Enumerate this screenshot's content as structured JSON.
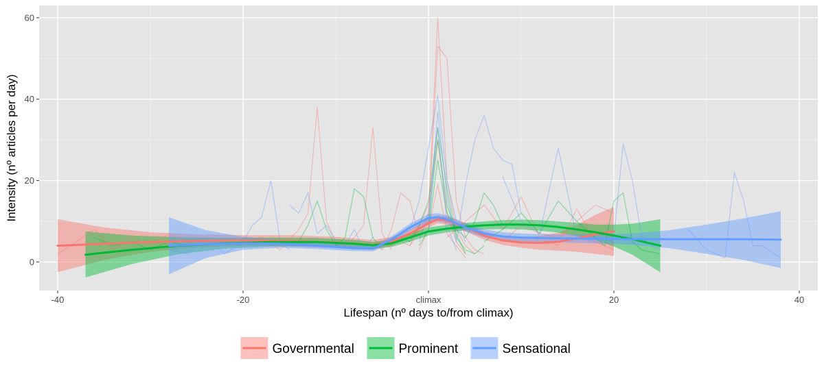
{
  "chart_data": {
    "type": "line",
    "xlabel": "Lifespan (nº days to/from climax)",
    "ylabel": "Intensity (nº articles per day)",
    "xlim": [
      -42,
      42
    ],
    "ylim": [
      -7,
      63
    ],
    "x_ticks": [
      {
        "value": -40,
        "label": "-40"
      },
      {
        "value": -20,
        "label": "-20"
      },
      {
        "value": 0,
        "label": "climax"
      },
      {
        "value": 20,
        "label": "20"
      },
      {
        "value": 40,
        "label": "40"
      }
    ],
    "y_ticks": [
      {
        "value": 0,
        "label": "0"
      },
      {
        "value": 20,
        "label": "20"
      },
      {
        "value": 40,
        "label": "40"
      },
      {
        "value": 60,
        "label": "60"
      }
    ],
    "grid": true,
    "legend_position": "bottom",
    "series": [
      {
        "name": "Governmental",
        "color": "#F8766D",
        "trend": {
          "x": [
            -40,
            -35,
            -30,
            -25,
            -20,
            -15,
            -10,
            -6,
            -4,
            -2,
            0,
            1,
            2,
            4,
            6,
            8,
            10,
            12,
            14,
            16,
            18,
            20
          ],
          "y": [
            4.0,
            4.5,
            4.9,
            5.2,
            5.3,
            5.2,
            4.8,
            4.2,
            5.0,
            7.0,
            9.5,
            10.5,
            10.2,
            8.5,
            6.5,
            5.3,
            4.8,
            4.7,
            5.0,
            5.8,
            6.8,
            7.5
          ],
          "lower": [
            -2.5,
            0.5,
            2.5,
            3.6,
            4.0,
            3.8,
            3.4,
            3.0,
            3.9,
            6.0,
            8.5,
            9.5,
            9.2,
            7.5,
            5.5,
            4.2,
            3.5,
            3.0,
            2.8,
            2.5,
            2.0,
            1.5
          ],
          "upper": [
            10.5,
            8.5,
            7.3,
            6.8,
            6.6,
            6.6,
            6.2,
            5.4,
            6.1,
            8.0,
            10.5,
            11.5,
            11.2,
            9.5,
            7.5,
            6.4,
            6.1,
            6.4,
            7.2,
            9.1,
            11.6,
            13.5
          ]
        },
        "raw": [
          {
            "x": [
              -40,
              -38,
              -36,
              -34,
              -32,
              -30,
              -28,
              -26
            ],
            "y": [
              2,
              5,
              8,
              3,
              6,
              4,
              7,
              5
            ]
          },
          {
            "x": [
              -20,
              -18,
              -16,
              -14,
              -13,
              -12,
              -11,
              -10,
              -9,
              -8,
              -7,
              -6,
              -5,
              -4
            ],
            "y": [
              4,
              6,
              3,
              8,
              12,
              38,
              10,
              5,
              4,
              6,
              9,
              33,
              7,
              3
            ]
          },
          {
            "x": [
              -5,
              -4,
              -3,
              -2,
              -1,
              0,
              1,
              2,
              3,
              4,
              5
            ],
            "y": [
              3,
              8,
              17,
              15,
              6,
              12,
              60,
              20,
              8,
              4,
              2
            ]
          },
          {
            "x": [
              -3,
              -2,
              -1,
              0,
              1,
              2,
              3,
              4,
              5,
              6
            ],
            "y": [
              5,
              4,
              8,
              10,
              53,
              50,
              15,
              6,
              3,
              2
            ]
          },
          {
            "x": [
              -2,
              -1,
              0,
              1,
              2,
              3,
              4
            ],
            "y": [
              4,
              9,
              14,
              30,
              12,
              5,
              2
            ]
          },
          {
            "x": [
              2,
              4,
              6,
              8,
              10,
              12,
              14,
              16,
              18,
              20
            ],
            "y": [
              6,
              10,
              14,
              8,
              16,
              6,
              4,
              13,
              5,
              3
            ]
          },
          {
            "x": [
              -1,
              0,
              1,
              2,
              3,
              4
            ],
            "y": [
              3,
              8,
              19,
              7,
              4,
              1
            ]
          },
          {
            "x": [
              8,
              10,
              12,
              14,
              16,
              18,
              20
            ],
            "y": [
              5,
              9,
              7,
              6,
              10,
              14,
              12
            ]
          }
        ]
      },
      {
        "name": "Prominent",
        "color": "#00BA38",
        "trend": {
          "x": [
            -37,
            -32,
            -27,
            -22,
            -17,
            -12,
            -8,
            -6,
            -4,
            -2,
            0,
            2,
            4,
            6,
            8,
            10,
            12,
            14,
            16,
            18,
            20,
            22,
            25
          ],
          "y": [
            1.8,
            3.0,
            4.0,
            4.6,
            4.9,
            4.9,
            4.5,
            4.1,
            4.6,
            6.0,
            7.5,
            8.2,
            8.7,
            9.0,
            9.2,
            9.2,
            9.0,
            8.6,
            8.0,
            7.3,
            6.5,
            5.6,
            4.0
          ],
          "lower": [
            -3.8,
            -0.5,
            1.9,
            3.3,
            3.8,
            3.9,
            3.6,
            3.3,
            3.7,
            5.0,
            6.5,
            7.3,
            7.8,
            8.0,
            8.1,
            8.0,
            7.7,
            7.2,
            6.4,
            5.4,
            3.8,
            1.8,
            -2.5
          ],
          "upper": [
            7.5,
            6.5,
            6.1,
            5.9,
            6.0,
            5.9,
            5.4,
            4.9,
            5.5,
            7.0,
            8.5,
            9.1,
            9.6,
            10.0,
            10.3,
            10.4,
            10.3,
            10.0,
            9.6,
            9.2,
            9.2,
            9.4,
            10.5
          ]
        },
        "raw": [
          {
            "x": [
              -36,
              -34,
              -32,
              -30,
              -28,
              -26
            ],
            "y": [
              6,
              4,
              5,
              3,
              5,
              4
            ]
          },
          {
            "x": [
              -14,
              -13,
              -12,
              -11,
              -10,
              -9,
              -8,
              -7,
              -6,
              -5
            ],
            "y": [
              5,
              9,
              15,
              8,
              4,
              6,
              18,
              16,
              6,
              3
            ]
          },
          {
            "x": [
              -3,
              -2,
              -1,
              0,
              1,
              2,
              3,
              4,
              5,
              6
            ],
            "y": [
              6,
              5,
              9,
              15,
              33,
              18,
              6,
              3,
              2,
              4
            ]
          },
          {
            "x": [
              -1,
              0,
              1,
              2,
              3,
              4,
              5,
              6,
              7,
              8
            ],
            "y": [
              4,
              8,
              25,
              12,
              8,
              6,
              10,
              17,
              14,
              9
            ]
          },
          {
            "x": [
              6,
              8,
              10,
              12,
              14,
              16,
              18,
              19,
              20,
              21,
              22,
              23,
              25
            ],
            "y": [
              5,
              8,
              12,
              7,
              15,
              10,
              6,
              4,
              15,
              17,
              5,
              3,
              2
            ]
          },
          {
            "x": [
              0,
              1,
              2,
              3,
              4
            ],
            "y": [
              10,
              30,
              14,
              7,
              2
            ]
          }
        ]
      },
      {
        "name": "Sensational",
        "color": "#619CFF",
        "trend": {
          "x": [
            -28,
            -24,
            -20,
            -16,
            -12,
            -8,
            -6,
            -4,
            -2,
            0,
            1,
            2,
            4,
            6,
            8,
            10,
            14,
            18,
            22,
            26,
            30,
            34,
            38
          ],
          "y": [
            4.0,
            4.4,
            4.6,
            4.5,
            4.0,
            3.4,
            3.3,
            5.5,
            8.5,
            10.8,
            11.0,
            10.5,
            8.5,
            7.0,
            6.3,
            6.0,
            5.8,
            5.7,
            5.6,
            5.6,
            5.6,
            5.6,
            5.5
          ],
          "lower": [
            -3.0,
            1.0,
            3.0,
            3.5,
            3.2,
            2.7,
            2.6,
            4.7,
            7.6,
            9.8,
            10.0,
            9.5,
            7.5,
            6.0,
            5.3,
            5.0,
            4.8,
            4.6,
            4.2,
            3.4,
            2.0,
            0.5,
            -1.5
          ],
          "upper": [
            11.0,
            7.8,
            6.2,
            5.5,
            4.8,
            4.1,
            4.0,
            6.3,
            9.4,
            11.8,
            12.0,
            11.5,
            9.5,
            8.0,
            7.3,
            7.0,
            6.8,
            6.8,
            7.0,
            7.8,
            9.2,
            10.7,
            12.5
          ]
        },
        "raw": [
          {
            "x": [
              -28,
              -26,
              -24,
              -22,
              -20,
              -19,
              -18,
              -17,
              -16,
              -15
            ],
            "y": [
              3,
              2,
              6,
              2,
              5,
              9,
              11,
              20,
              5,
              3
            ]
          },
          {
            "x": [
              -15,
              -14,
              -13,
              -12,
              -11,
              -10,
              -9,
              -8,
              -7,
              -6
            ],
            "y": [
              14,
              12,
              17,
              7,
              9,
              5,
              4,
              8,
              3,
              6
            ]
          },
          {
            "x": [
              -2,
              -1,
              0,
              1,
              2,
              3,
              4
            ],
            "y": [
              8,
              15,
              28,
              41,
              20,
              10,
              5
            ]
          },
          {
            "x": [
              0,
              1,
              2,
              3,
              4,
              5,
              6,
              7,
              8,
              9,
              10
            ],
            "y": [
              7,
              37,
              16,
              5,
              19,
              30,
              36,
              28,
              25,
              24,
              12
            ]
          },
          {
            "x": [
              8,
              10,
              12,
              14,
              16,
              18
            ],
            "y": [
              21,
              10,
              7,
              28,
              6,
              5
            ]
          },
          {
            "x": [
              20,
              21,
              22,
              23,
              24,
              25
            ],
            "y": [
              6,
              29,
              20,
              6,
              4,
              3
            ]
          },
          {
            "x": [
              28,
              30,
              32,
              33,
              34,
              35,
              36,
              38
            ],
            "y": [
              8,
              3,
              1,
              22,
              15,
              4,
              4,
              1
            ]
          },
          {
            "x": [
              -1,
              0,
              1,
              2,
              3
            ],
            "y": [
              5,
              12,
              33,
              9,
              3
            ]
          }
        ]
      }
    ]
  }
}
